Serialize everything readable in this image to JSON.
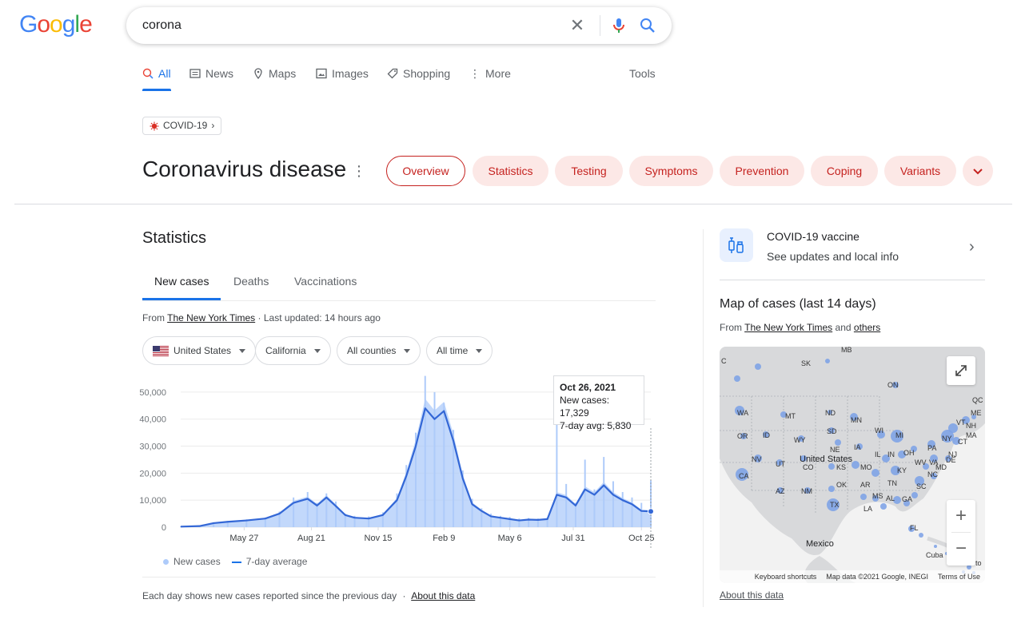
{
  "logo": {
    "text": "Google"
  },
  "search": {
    "query": "corona"
  },
  "nav": {
    "all": "All",
    "news": "News",
    "maps": "Maps",
    "images": "Images",
    "shopping": "Shopping",
    "more": "More",
    "tools": "Tools"
  },
  "topic_chip": "COVID-19",
  "topic": {
    "title": "Coronavirus disease",
    "pills": [
      "Overview",
      "Statistics",
      "Testing",
      "Symptoms",
      "Prevention",
      "Coping",
      "Variants"
    ]
  },
  "statistics": {
    "title": "Statistics",
    "tabs": [
      "New cases",
      "Deaths",
      "Vaccinations"
    ],
    "source_prefix": "From",
    "source_name": "The New York Times",
    "source_suffix": "· Last updated: 14 hours ago",
    "filters": [
      "United States",
      "California",
      "All counties",
      "All time"
    ],
    "legend": {
      "new_cases": "New cases",
      "avg": "7-day average"
    },
    "footnote": "Each day shows new cases reported since the previous day",
    "footnote_sep": "·",
    "footnote_link": "About this data",
    "tooltip": {
      "date": "Oct 26, 2021",
      "new_cases": "New cases: 17,329",
      "avg": "7-day avg: 5,830"
    }
  },
  "chart_data": {
    "type": "bar",
    "xlabel": "",
    "ylabel": "",
    "ylim": [
      0,
      55000
    ],
    "yticks": [
      "0",
      "10,000",
      "20,000",
      "30,000",
      "40,000",
      "50,000"
    ],
    "xticks": [
      "May 27",
      "Aug 21",
      "Nov 15",
      "Feb 9",
      "May 6",
      "Jul 31",
      "Oct 25"
    ],
    "series": [
      {
        "name": "7-day average",
        "type": "line",
        "x": [
          0,
          0.04,
          0.07,
          0.1,
          0.14,
          0.18,
          0.21,
          0.24,
          0.27,
          0.29,
          0.31,
          0.33,
          0.35,
          0.37,
          0.4,
          0.43,
          0.46,
          0.48,
          0.5,
          0.52,
          0.54,
          0.56,
          0.58,
          0.6,
          0.62,
          0.64,
          0.66,
          0.68,
          0.7,
          0.72,
          0.74,
          0.76,
          0.78,
          0.8,
          0.82,
          0.84,
          0.86,
          0.88,
          0.9,
          0.92,
          0.94,
          0.96,
          0.98,
          1.0
        ],
        "y": [
          200,
          400,
          1500,
          2000,
          2500,
          3200,
          5000,
          9000,
          10500,
          8000,
          11000,
          7800,
          4500,
          3500,
          3200,
          4500,
          10000,
          19000,
          30000,
          44000,
          40000,
          43000,
          32000,
          18000,
          8500,
          6000,
          4000,
          3500,
          3000,
          2500,
          2800,
          2700,
          3000,
          12000,
          11000,
          8000,
          14000,
          12000,
          15500,
          12000,
          10000,
          8500,
          6000,
          5830
        ]
      },
      {
        "name": "New cases",
        "type": "bar",
        "x": [
          0,
          0.04,
          0.07,
          0.1,
          0.14,
          0.18,
          0.21,
          0.24,
          0.27,
          0.29,
          0.31,
          0.33,
          0.35,
          0.37,
          0.4,
          0.43,
          0.46,
          0.48,
          0.5,
          0.52,
          0.54,
          0.56,
          0.58,
          0.6,
          0.62,
          0.64,
          0.66,
          0.68,
          0.7,
          0.72,
          0.74,
          0.76,
          0.78,
          0.8,
          0.82,
          0.84,
          0.86,
          0.88,
          0.9,
          0.92,
          0.94,
          0.96,
          0.98,
          1.0
        ],
        "y": [
          300,
          600,
          1800,
          2300,
          2900,
          3600,
          5800,
          11000,
          13000,
          9000,
          12500,
          9500,
          5000,
          4200,
          4000,
          5500,
          12500,
          23000,
          35000,
          56000,
          50000,
          46000,
          36000,
          21000,
          10500,
          7000,
          5000,
          4200,
          3800,
          3200,
          3400,
          3200,
          3600,
          38000,
          16000,
          9000,
          25000,
          14000,
          26000,
          17000,
          13000,
          11000,
          9000,
          17329
        ]
      }
    ]
  },
  "vaccine_card": {
    "title": "COVID-19 vaccine",
    "subtitle": "See updates and local info"
  },
  "map": {
    "title": "Map of cases (last 14 days)",
    "source_prefix": "From",
    "source_name": "The New York Times",
    "source_and": "and",
    "source_others": "others",
    "labels": {
      "us": "United States",
      "mexico": "Mexico",
      "cuba": "Cuba",
      "sk": "SK",
      "mb": "MB",
      "on": "ON",
      "c": "C",
      "mt": "MT",
      "nd": "ND",
      "mn": "MN",
      "wa": "WA",
      "or": "OR",
      "id": "ID",
      "wy": "WY",
      "sd": "SD",
      "ne": "NE",
      "ia": "IA",
      "nv": "NV",
      "ut": "UT",
      "co": "CO",
      "ks": "KS",
      "mo": "MO",
      "ca": "CA",
      "az": "AZ",
      "nm": "NM",
      "ok": "OK",
      "ar": "AR",
      "tn": "TN",
      "tx": "TX",
      "la": "LA",
      "ms": "MS",
      "al": "AL",
      "ga": "GA",
      "sc": "SC",
      "nc": "NC",
      "va": "VA",
      "ky": "KY",
      "wv": "WV",
      "oh": "OH",
      "in": "IN",
      "il": "IL",
      "mi": "MI",
      "wi": "WI",
      "pa": "PA",
      "ny": "NY",
      "nj": "NJ",
      "de": "DE",
      "md": "MD",
      "ct": "CT",
      "ma": "MA",
      "vt": "VT",
      "nh": "NH",
      "me": "ME",
      "fl": "FL",
      "qc": "QC",
      "to": "to"
    },
    "attribution": {
      "shortcuts": "Keyboard shortcuts",
      "data": "Map data ©2021 Google, INEGI",
      "terms": "Terms of Use"
    },
    "about": "About this data"
  },
  "colors": {
    "accent": "#1a73e8",
    "pill_bg": "#fce8e6",
    "pill_text": "#c5221f",
    "bar": "#aecbfa",
    "line": "#3367d6",
    "map_land": "#d8d9db",
    "map_bubble": "#7aa0e6"
  }
}
